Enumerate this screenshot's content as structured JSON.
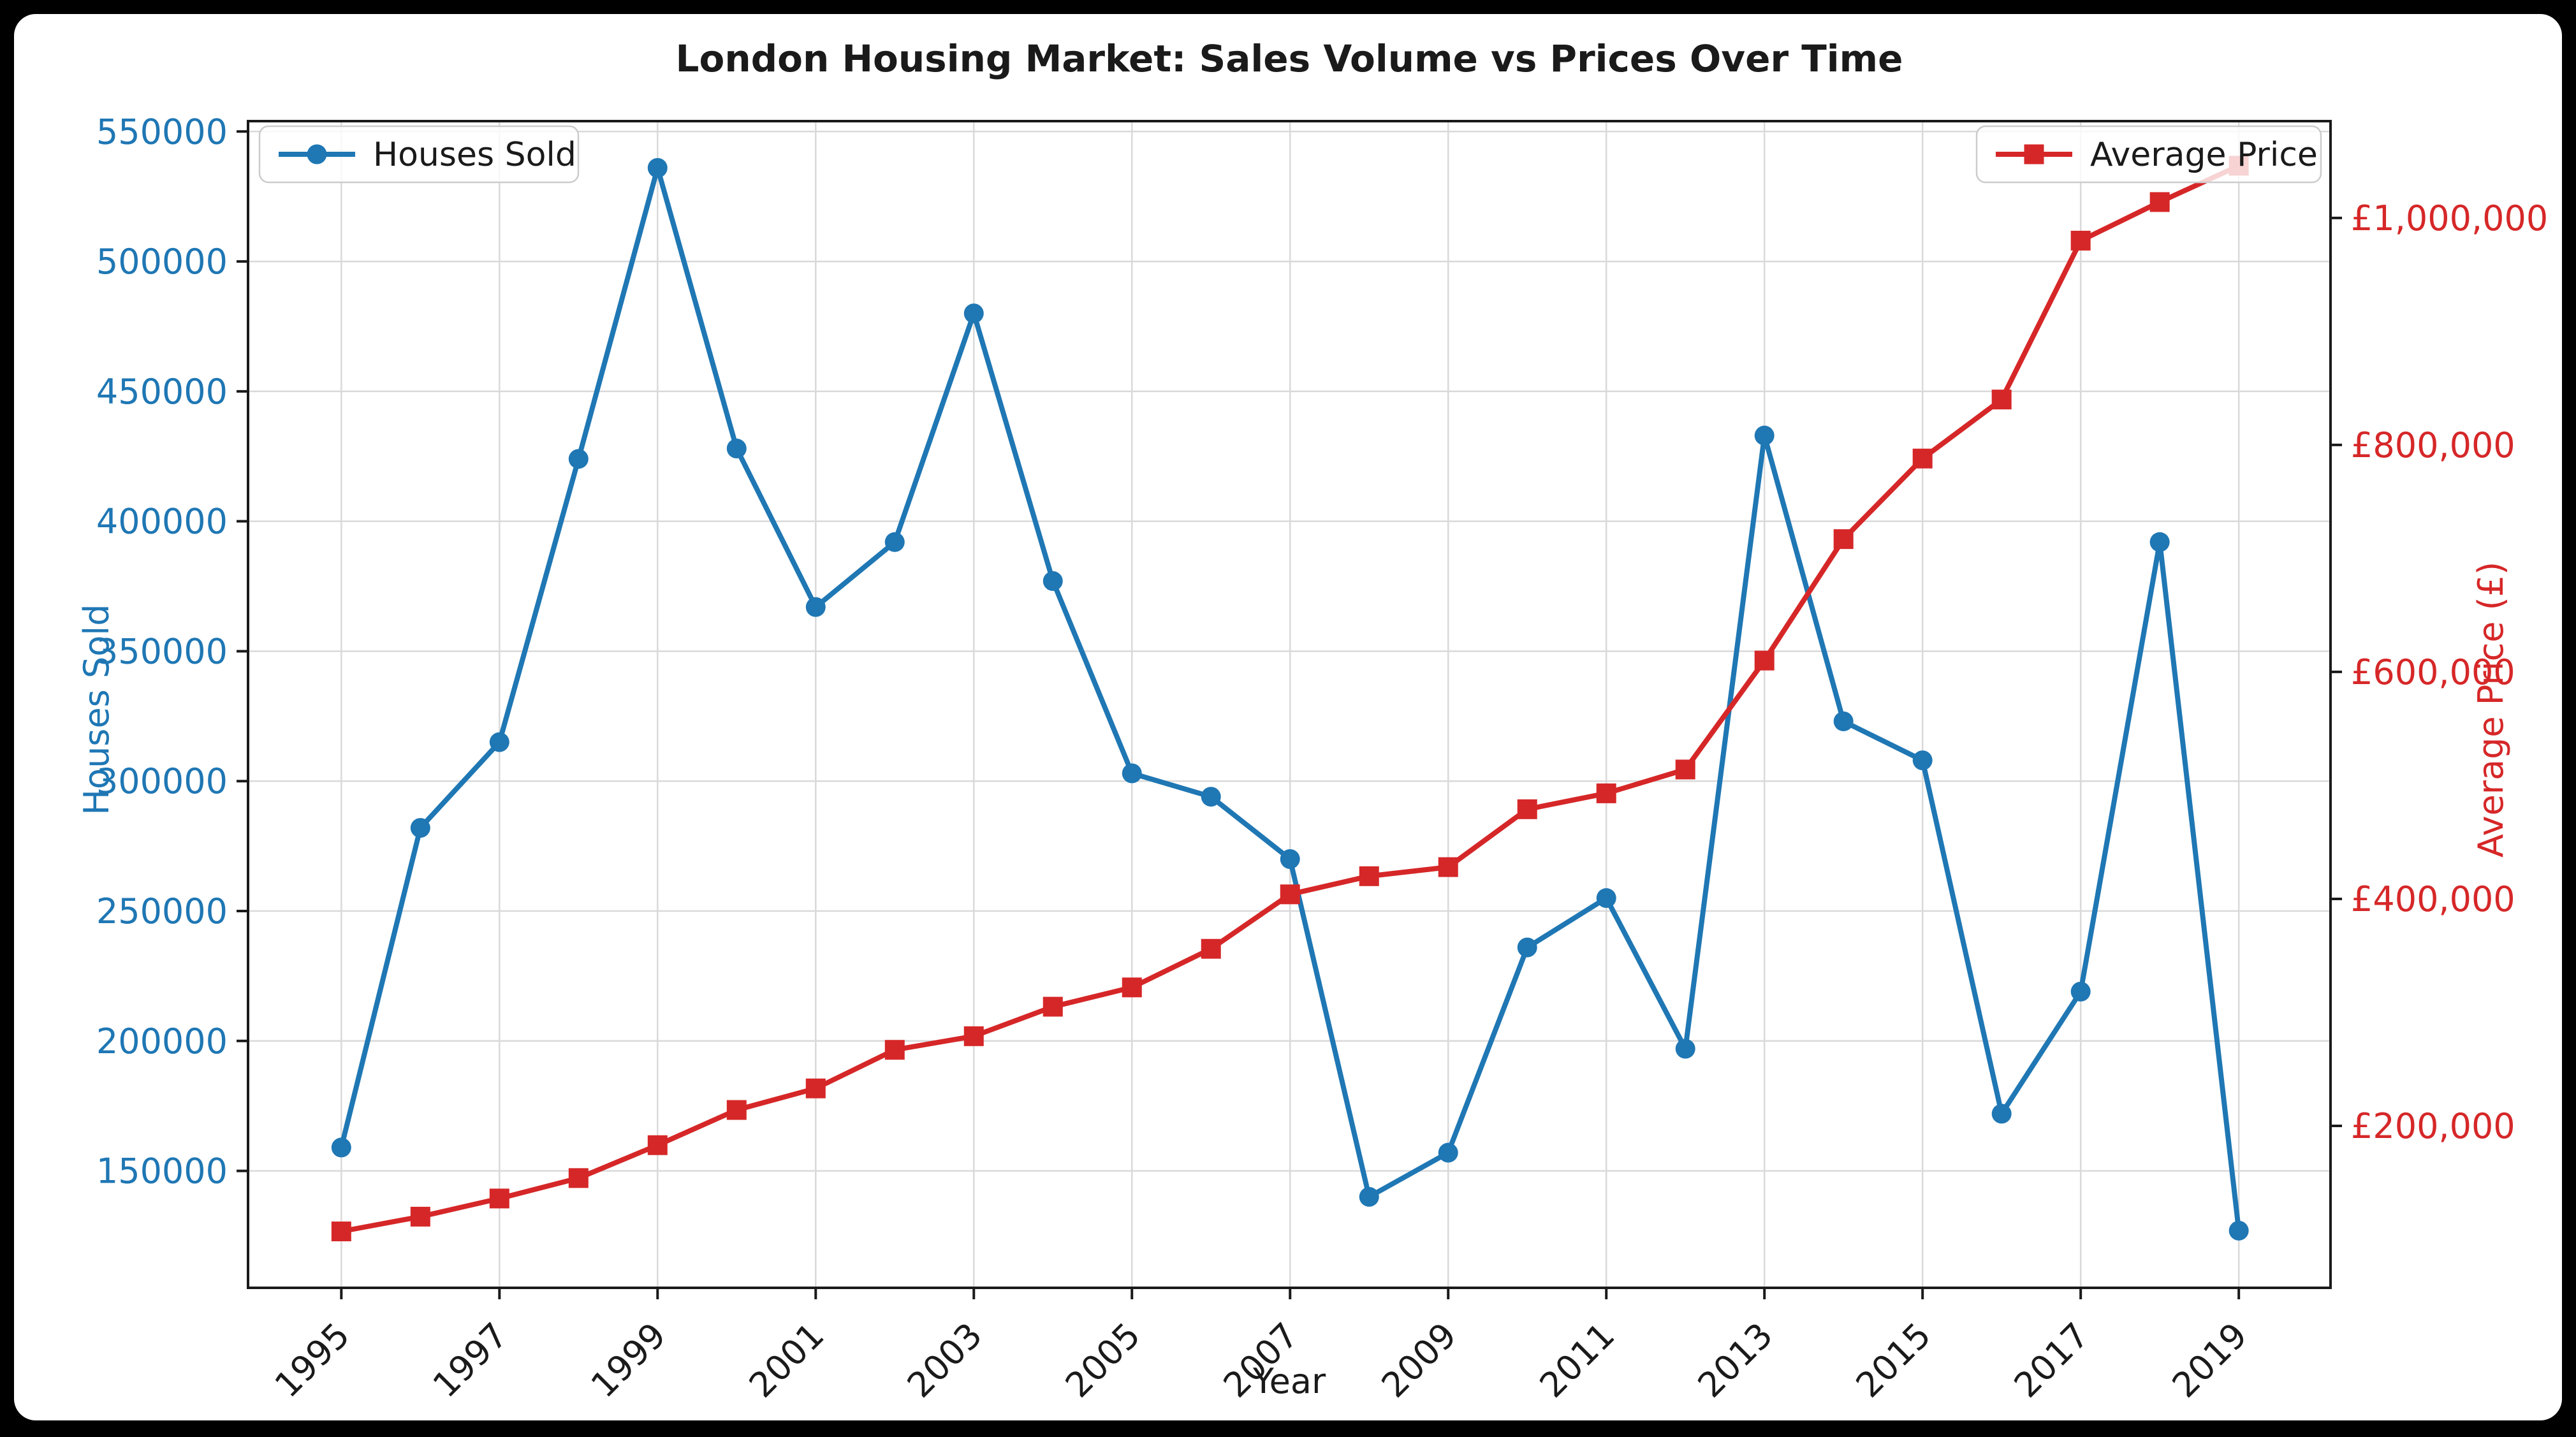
{
  "figure": {
    "background_color": "#ffffff",
    "outer_background": "#000000"
  },
  "chart_data": {
    "type": "line",
    "title": "London Housing Market: Sales Volume vs Prices Over Time",
    "xlabel": "Year",
    "ylabel_left": "Houses Sold",
    "ylabel_right": "Average Price (£)",
    "grid": true,
    "grid_color": "#d9d9d9",
    "spine_color": "#1a1a1a",
    "text_color": "#1a1a1a",
    "x": [
      1995,
      1996,
      1997,
      1998,
      1999,
      2000,
      2001,
      2002,
      2003,
      2004,
      2005,
      2006,
      2007,
      2008,
      2009,
      2010,
      2011,
      2012,
      2013,
      2014,
      2015,
      2016,
      2017,
      2018,
      2019
    ],
    "x_tick_labels": [
      "1995",
      "1997",
      "1999",
      "2001",
      "2003",
      "2005",
      "2007",
      "2009",
      "2011",
      "2013",
      "2015",
      "2017",
      "2019"
    ],
    "x_ticks": [
      1995,
      1997,
      1999,
      2001,
      2003,
      2005,
      2007,
      2009,
      2011,
      2013,
      2015,
      2017,
      2019
    ],
    "x_range": [
      1993.82,
      2020.16
    ],
    "series": [
      {
        "name": "Houses Sold",
        "axis": "left",
        "color": "#1f77b4",
        "marker": "circle",
        "values": [
          159000,
          282000,
          315000,
          424000,
          536000,
          428000,
          367000,
          392000,
          480000,
          377000,
          303000,
          294000,
          270000,
          140000,
          157000,
          236000,
          255000,
          197000,
          433000,
          323000,
          308000,
          172000,
          219000,
          392000,
          127000
        ]
      },
      {
        "name": "Average Price",
        "axis": "right",
        "color": "#d62728",
        "marker": "square",
        "values": [
          107000,
          120000,
          136000,
          154000,
          183000,
          214000,
          233000,
          267000,
          279000,
          305000,
          322000,
          356000,
          404000,
          420000,
          428000,
          479000,
          493000,
          514000,
          610000,
          717000,
          788000,
          840000,
          980000,
          1014000,
          1046000
        ]
      }
    ],
    "left_axis": {
      "color": "#1f77b4",
      "range": [
        105000,
        554000
      ],
      "ticks": [
        150000,
        200000,
        250000,
        300000,
        350000,
        400000,
        450000,
        500000,
        550000
      ],
      "tick_labels": [
        "150000",
        "200000",
        "250000",
        "300000",
        "350000",
        "400000",
        "450000",
        "500000",
        "550000"
      ]
    },
    "right_axis": {
      "color": "#d62728",
      "range": [
        57300,
        1085300
      ],
      "ticks": [
        200000,
        400000,
        600000,
        800000,
        1000000
      ],
      "tick_labels": [
        "£200,000",
        "£400,000",
        "£600,000",
        "£800,000",
        "£1,000,000"
      ]
    },
    "legends": [
      {
        "label": "Houses Sold",
        "position": "upper-left"
      },
      {
        "label": "Average Price",
        "position": "upper-right"
      }
    ]
  }
}
